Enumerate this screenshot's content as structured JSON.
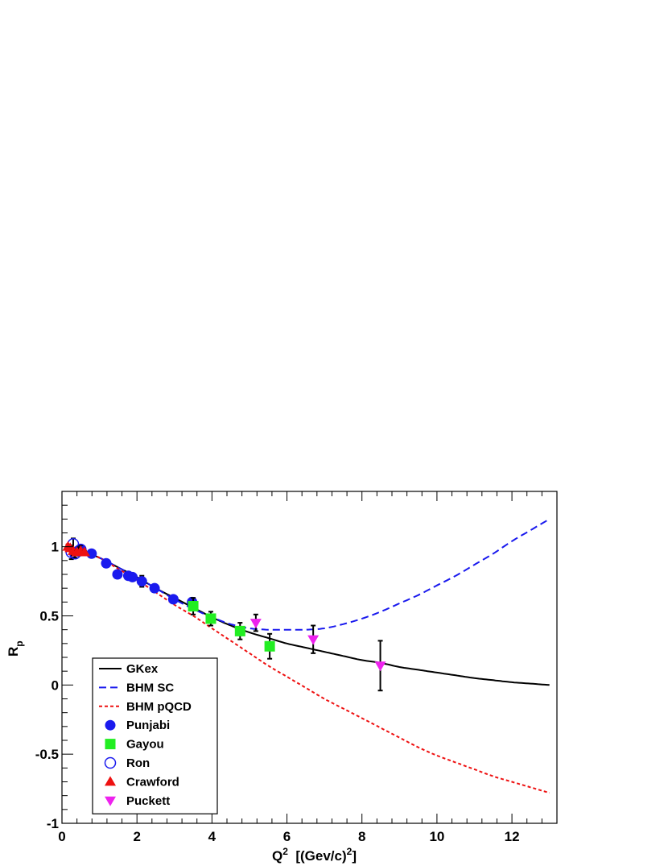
{
  "chart_data": {
    "type": "line",
    "xlabel": "Q² [(Gev/c)²]",
    "xlabel_parts": {
      "main": "Q",
      "sup1": "2",
      "rest": "  [(Gev/c)",
      "sup2": "2",
      "end": "]"
    },
    "ylabel": "R_p",
    "ylabel_parts": {
      "main": "R",
      "sub": "p"
    },
    "xlim": [
      0,
      13.2
    ],
    "ylim": [
      -1,
      1.4
    ],
    "x_ticks": [
      0,
      2,
      4,
      6,
      8,
      10,
      12
    ],
    "y_ticks": [
      -1,
      -0.5,
      0,
      0.5,
      1
    ],
    "x_tick_labels": [
      "0",
      "2",
      "4",
      "6",
      "8",
      "10",
      "12"
    ],
    "y_tick_labels": [
      "-1",
      "-0.5",
      "0",
      "0.5",
      "1"
    ],
    "grid": false,
    "legend_position": "bottom-left",
    "curves": [
      {
        "name": "GKex",
        "style": "solid",
        "color": "#000000",
        "x": [
          0.1,
          0.5,
          1,
          1.5,
          2,
          2.5,
          3,
          3.5,
          4,
          4.5,
          5,
          5.5,
          6,
          6.5,
          7,
          7.5,
          8,
          8.5,
          9,
          9.5,
          10,
          10.5,
          11,
          11.5,
          12,
          12.5,
          13
        ],
        "y": [
          1.0,
          0.97,
          0.92,
          0.85,
          0.78,
          0.7,
          0.63,
          0.56,
          0.49,
          0.43,
          0.38,
          0.34,
          0.3,
          0.27,
          0.24,
          0.21,
          0.18,
          0.16,
          0.13,
          0.11,
          0.09,
          0.07,
          0.05,
          0.035,
          0.02,
          0.01,
          0.0
        ]
      },
      {
        "name": "BHM SC",
        "style": "dashed",
        "color": "#1a1aee",
        "x": [
          0.1,
          0.5,
          1,
          1.5,
          2,
          2.5,
          3,
          3.5,
          4,
          4.5,
          5,
          5.5,
          6,
          6.5,
          7,
          7.5,
          8,
          8.5,
          9,
          9.5,
          10,
          10.5,
          11,
          11.5,
          12,
          12.5,
          13
        ],
        "y": [
          1.0,
          0.97,
          0.92,
          0.85,
          0.78,
          0.7,
          0.62,
          0.55,
          0.49,
          0.44,
          0.41,
          0.4,
          0.4,
          0.4,
          0.41,
          0.44,
          0.48,
          0.53,
          0.59,
          0.65,
          0.72,
          0.79,
          0.87,
          0.95,
          1.04,
          1.12,
          1.2
        ]
      },
      {
        "name": "BHM pQCD",
        "style": "dotted",
        "color": "#ee1111",
        "x": [
          0.1,
          0.5,
          1,
          1.5,
          2,
          2.5,
          3,
          3.5,
          4,
          4.5,
          5,
          5.5,
          6,
          6.5,
          7,
          7.5,
          8,
          8.5,
          9,
          9.5,
          10,
          10.5,
          11,
          11.5,
          12,
          12.5,
          13
        ],
        "y": [
          1.02,
          0.98,
          0.92,
          0.84,
          0.76,
          0.67,
          0.58,
          0.5,
          0.41,
          0.32,
          0.23,
          0.14,
          0.06,
          -0.02,
          -0.1,
          -0.17,
          -0.24,
          -0.31,
          -0.38,
          -0.45,
          -0.51,
          -0.56,
          -0.61,
          -0.66,
          -0.7,
          -0.74,
          -0.78
        ]
      }
    ],
    "series": [
      {
        "name": "Punjabi",
        "marker": "circle-filled",
        "color": "#1a1aee",
        "x": [
          0.49,
          0.79,
          1.18,
          1.48,
          1.77,
          1.88,
          2.13,
          2.47,
          2.97,
          3.47
        ],
        "y": [
          0.98,
          0.95,
          0.88,
          0.8,
          0.79,
          0.78,
          0.75,
          0.7,
          0.62,
          0.6
        ],
        "err": [
          0.02,
          0.02,
          0.02,
          0.02,
          0.02,
          0.02,
          0.04,
          0.02,
          0.02,
          0.03
        ]
      },
      {
        "name": "Gayou",
        "marker": "square-filled",
        "color": "#22ee22",
        "x": [
          3.5,
          3.97,
          4.75,
          5.54
        ],
        "y": [
          0.57,
          0.48,
          0.39,
          0.28
        ],
        "err": [
          0.06,
          0.05,
          0.06,
          0.09
        ]
      },
      {
        "name": "Ron",
        "marker": "circle-open",
        "color": "#1a1aee",
        "x": [
          0.25,
          0.3,
          0.35,
          0.45,
          0.5
        ],
        "y": [
          0.96,
          1.02,
          0.95,
          0.97,
          0.98
        ],
        "err": [
          0.05,
          0.04,
          0.03,
          0.03,
          0.03
        ]
      },
      {
        "name": "Crawford",
        "marker": "triangle-up-filled",
        "color": "#ee1111",
        "x": [
          0.16,
          0.22,
          0.3,
          0.4,
          0.5,
          0.6
        ],
        "y": [
          1.0,
          0.99,
          0.97,
          0.96,
          0.97,
          0.96
        ],
        "err": [
          0.01,
          0.01,
          0.01,
          0.01,
          0.01,
          0.01
        ]
      },
      {
        "name": "Puckett",
        "marker": "triangle-down-filled",
        "color": "#ee22ee",
        "x": [
          5.17,
          6.7,
          8.49
        ],
        "y": [
          0.45,
          0.33,
          0.14
        ],
        "err": [
          0.06,
          0.1,
          0.18
        ]
      }
    ],
    "legend": [
      {
        "label": "GKex",
        "kind": "line",
        "style": "solid",
        "color": "#000000"
      },
      {
        "label": "BHM SC",
        "kind": "line",
        "style": "dashed",
        "color": "#1a1aee"
      },
      {
        "label": "BHM pQCD",
        "kind": "line",
        "style": "dotted",
        "color": "#ee1111"
      },
      {
        "label": "Punjabi",
        "kind": "marker",
        "marker": "circle-filled",
        "color": "#1a1aee"
      },
      {
        "label": "Gayou",
        "kind": "marker",
        "marker": "square-filled",
        "color": "#22ee22"
      },
      {
        "label": "Ron",
        "kind": "marker",
        "marker": "circle-open",
        "color": "#1a1aee"
      },
      {
        "label": "Crawford",
        "kind": "marker",
        "marker": "triangle-up-filled",
        "color": "#ee1111"
      },
      {
        "label": "Puckett",
        "kind": "marker",
        "marker": "triangle-down-filled",
        "color": "#ee22ee"
      }
    ]
  }
}
